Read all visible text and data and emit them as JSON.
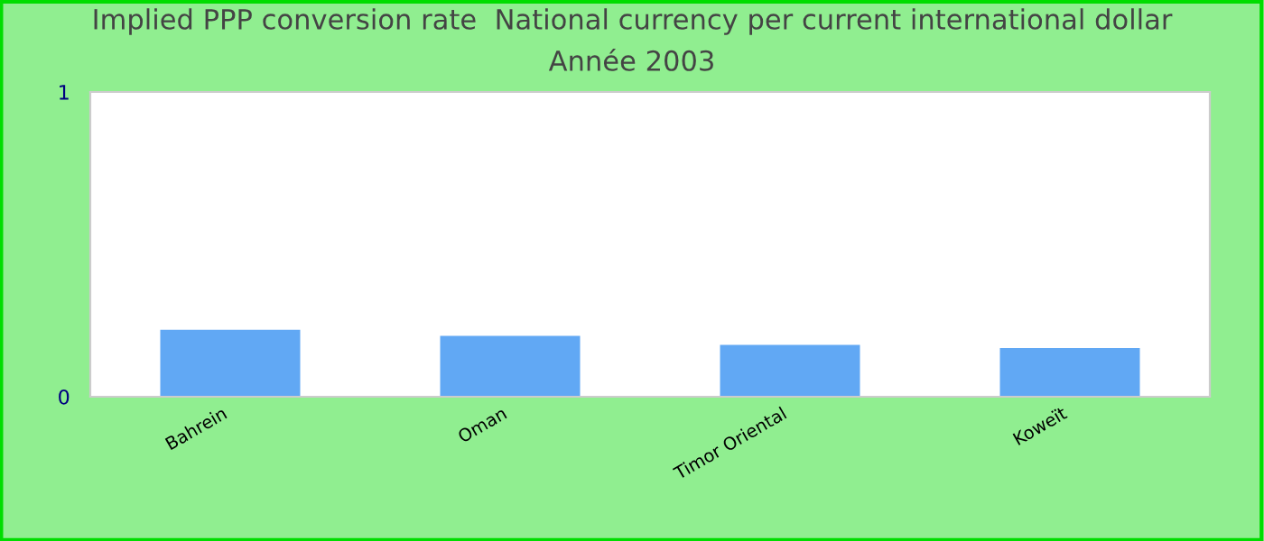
{
  "chart_data": {
    "type": "bar",
    "title": "Implied PPP conversion rate  National currency per current international dollar",
    "subtitle": "Année 2003",
    "categories": [
      "Bahrein",
      "Oman",
      "Timor Oriental",
      "Koweït"
    ],
    "values": [
      0.22,
      0.2,
      0.17,
      0.16
    ],
    "color": "#61a8f4",
    "ylim": [
      0,
      1
    ],
    "yticks": [
      0,
      1
    ],
    "grid": false,
    "legend": false
  }
}
